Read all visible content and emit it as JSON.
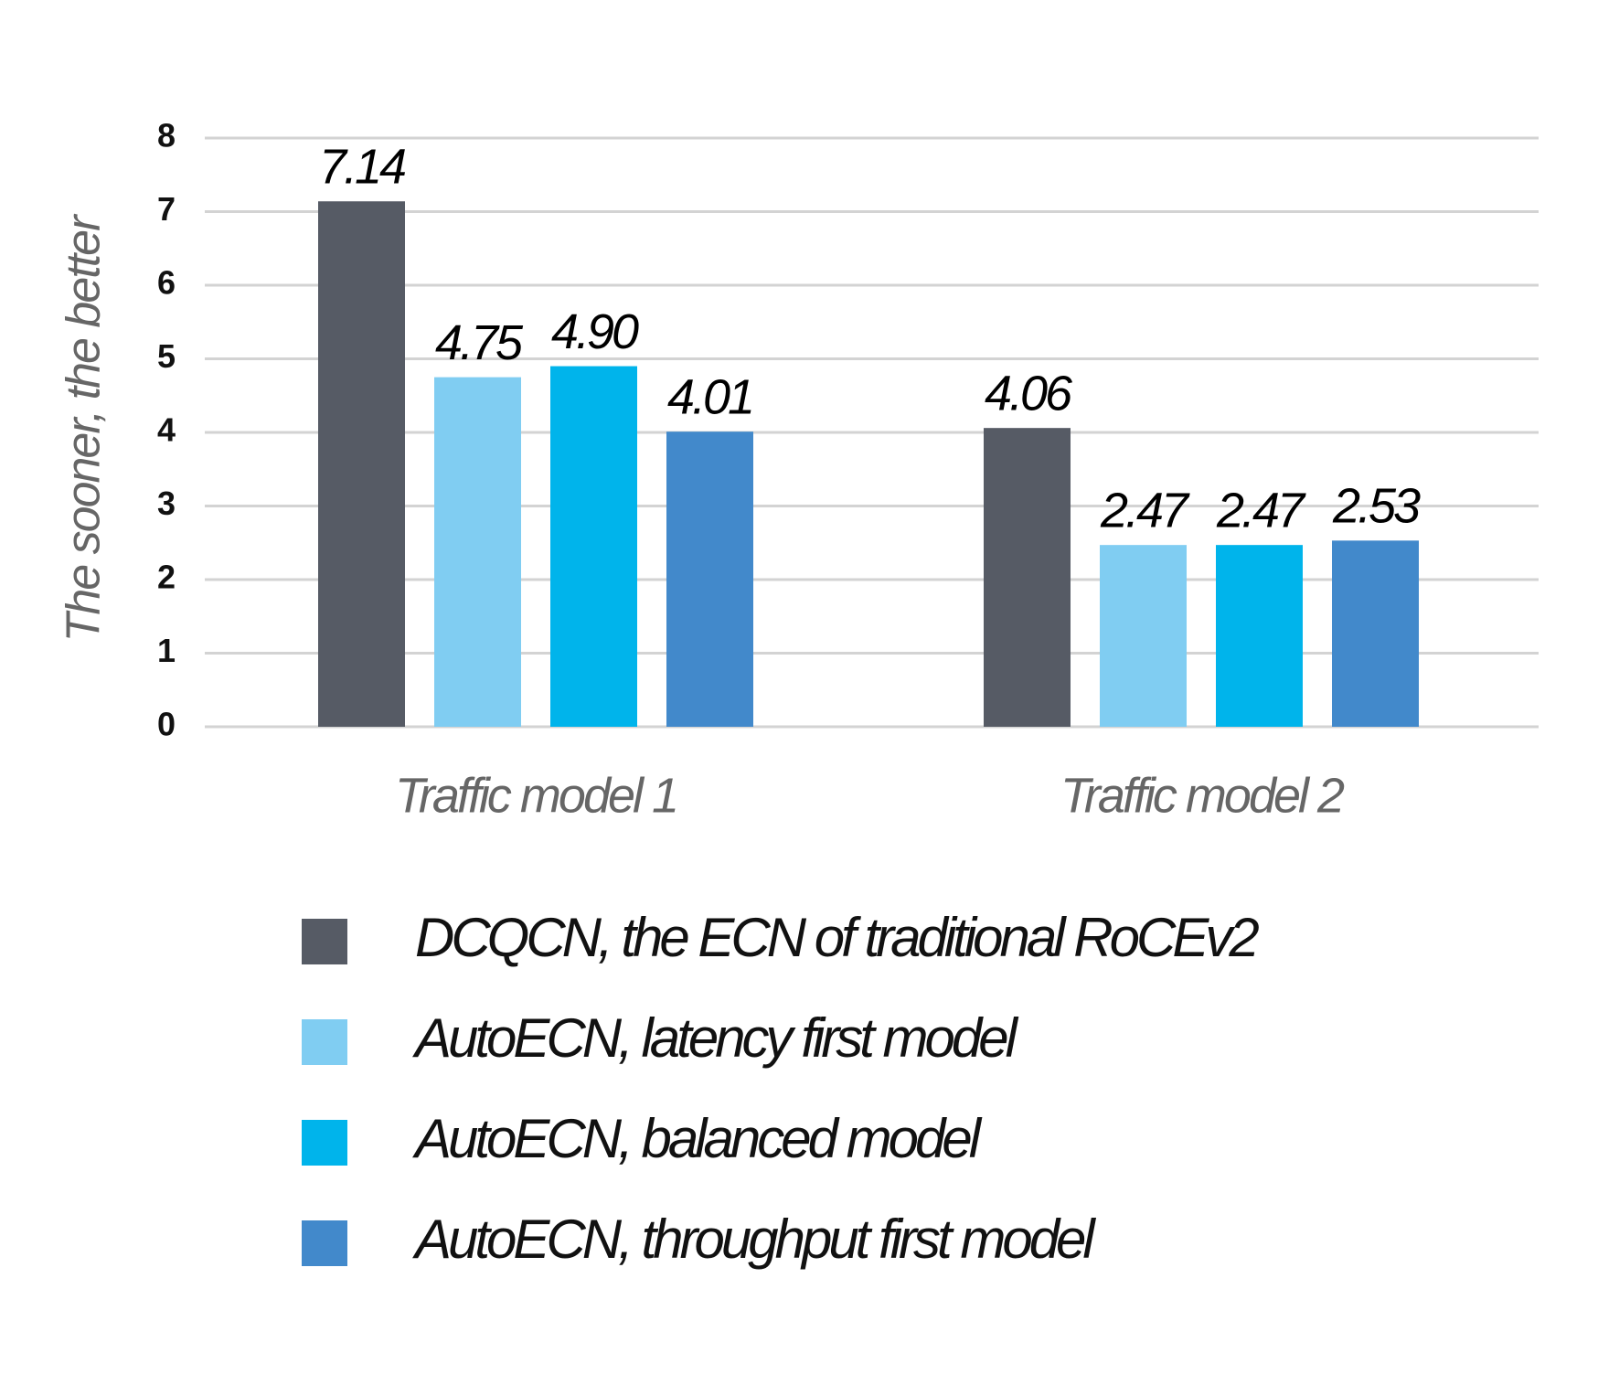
{
  "chart_data": {
    "type": "bar",
    "ylabel": "The sooner, the better",
    "categories": [
      "Traffic model 1",
      "Traffic model 2"
    ],
    "series": [
      {
        "name": "DCQCN, the ECN of traditional RoCEv2",
        "color": "#565b65",
        "values": [
          7.14,
          4.06
        ]
      },
      {
        "name": "AutoECN, latency first model",
        "color": "#80cdf2",
        "values": [
          4.75,
          2.47
        ]
      },
      {
        "name": "AutoECN, balanced model",
        "color": "#00b4eb",
        "values": [
          4.9,
          2.47
        ],
        "value_labels": [
          "4.90",
          "2.47"
        ]
      },
      {
        "name": "AutoECN, throughput first model",
        "color": "#4289cb",
        "values": [
          4.01,
          2.53
        ]
      }
    ],
    "ylim": [
      0,
      8
    ],
    "yticks": [
      0,
      1,
      2,
      3,
      4,
      5,
      6,
      7,
      8
    ],
    "grid": true,
    "legend": "bottom"
  }
}
